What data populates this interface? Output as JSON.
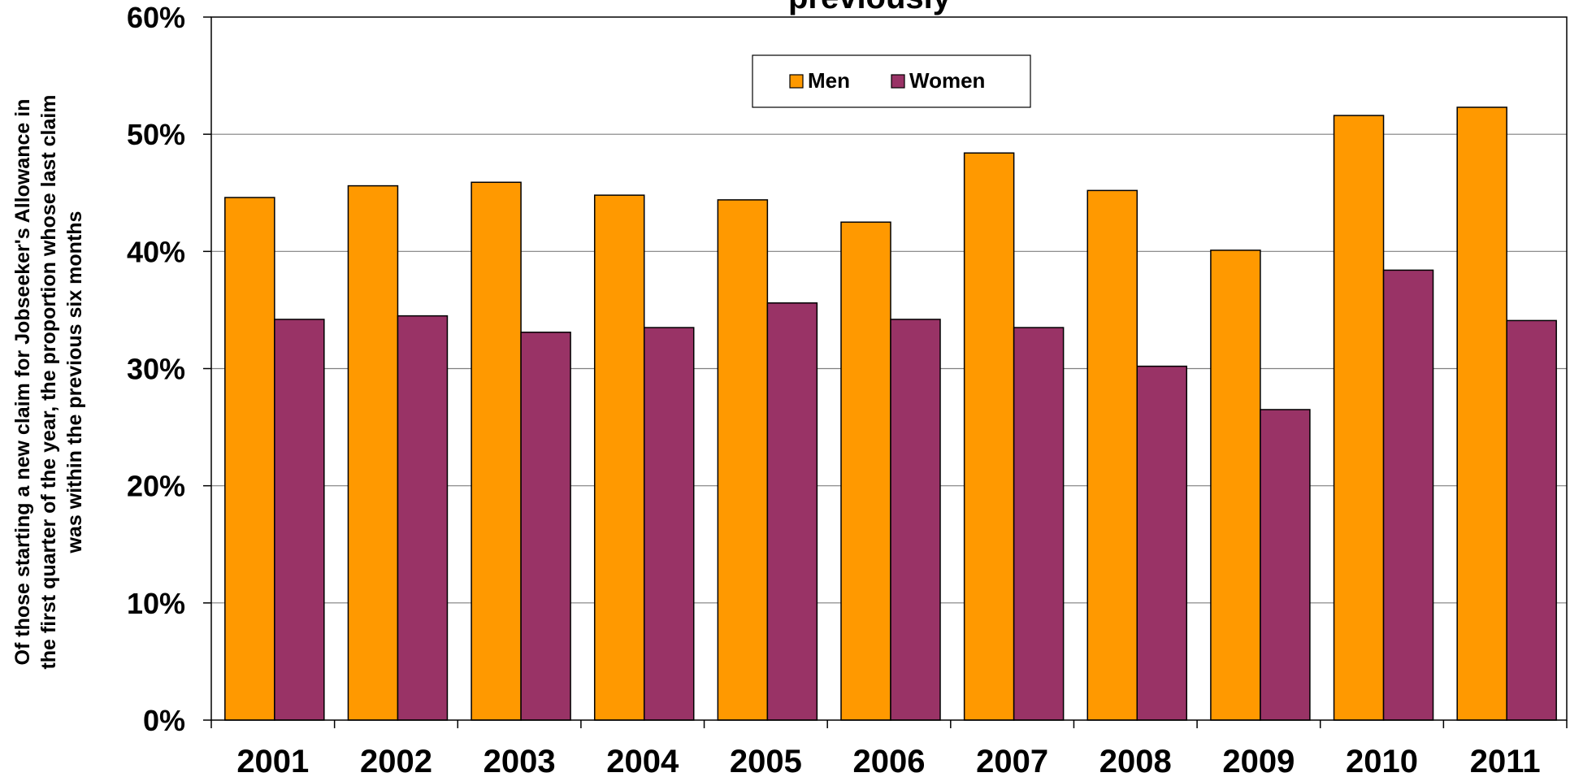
{
  "chart_data": {
    "type": "bar",
    "title": "previously",
    "ylabel_lines": [
      "Of those starting a new claim for Jobseeker's Allowance in",
      "the first quarter of the year, the proportion whose last claim",
      "was within the previous six months"
    ],
    "xlabel": "",
    "categories": [
      "2001",
      "2002",
      "2003",
      "2004",
      "2005",
      "2006",
      "2007",
      "2008",
      "2009",
      "2010",
      "2011"
    ],
    "series": [
      {
        "name": "Men",
        "color": "#FF9900",
        "values": [
          44.6,
          45.6,
          45.9,
          44.8,
          44.4,
          42.5,
          48.4,
          45.2,
          40.1,
          51.6,
          52.3
        ]
      },
      {
        "name": "Women",
        "color": "#993366",
        "values": [
          34.2,
          34.5,
          33.1,
          33.5,
          35.6,
          34.2,
          33.5,
          30.2,
          26.5,
          38.4,
          34.1
        ]
      }
    ],
    "ylim": [
      0,
      60
    ],
    "yticks": [
      0,
      10,
      20,
      30,
      40,
      50,
      60
    ],
    "ytick_labels": [
      "0%",
      "10%",
      "20%",
      "30%",
      "40%",
      "50%",
      "60%"
    ],
    "grid": true,
    "legend_position": "top-center"
  }
}
